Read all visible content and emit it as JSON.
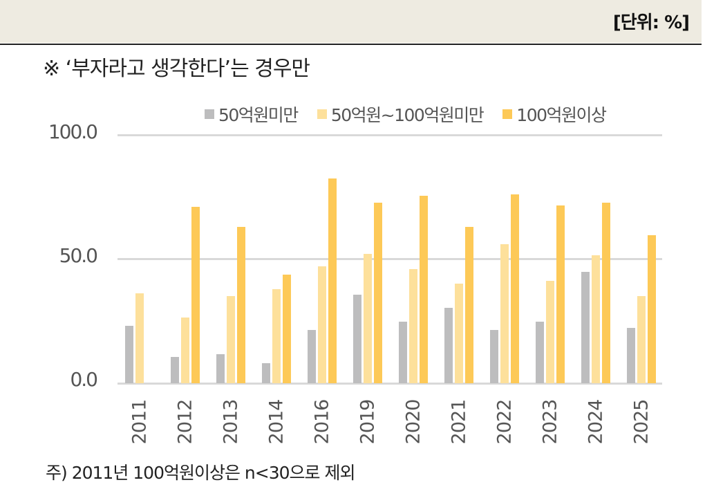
{
  "header": {
    "unit_label": "[단위: %]"
  },
  "subtitle": "※ ‘부자라고 생각한다’는 경우만",
  "footnote": "주) 2011년 100억원이상은 n<30으로 제외",
  "colors": {
    "series0": "#bdbdbe",
    "series1": "#fde09b",
    "series2": "#fdc957",
    "grid": "#d9d9d9",
    "header_bg": "#eeebe1"
  },
  "legend": [
    {
      "label": "50억원미만",
      "color": "#bdbdbe"
    },
    {
      "label": "50억원~100억원미만",
      "color": "#fde09b"
    },
    {
      "label": "100억원이상",
      "color": "#fdc957"
    }
  ],
  "yaxis": {
    "ticks": [
      "100.0",
      "50.0",
      "0.0"
    ]
  },
  "chart_data": {
    "type": "bar",
    "title": "※ ‘부자라고 생각한다’는 경우만",
    "xlabel": "",
    "ylabel": "",
    "unit": "%",
    "ylim": [
      0,
      100
    ],
    "yticks": [
      0,
      50,
      100
    ],
    "grid": true,
    "legend_position": "top-right",
    "categories": [
      "2011",
      "2012",
      "2013",
      "2014",
      "2016",
      "2019",
      "2020",
      "2021",
      "2022",
      "2023",
      "2024",
      "2025"
    ],
    "series": [
      {
        "name": "50억원미만",
        "values": [
          23.2,
          10.7,
          11.8,
          8.1,
          21.5,
          35.7,
          24.8,
          30.3,
          21.5,
          24.8,
          44.9,
          22.2
        ]
      },
      {
        "name": "50억원~100억원미만",
        "values": [
          36.2,
          26.5,
          35.2,
          37.8,
          47.1,
          52.0,
          46.1,
          40.1,
          55.9,
          41.2,
          51.5,
          35.2
        ]
      },
      {
        "name": "100억원이상",
        "values": [
          null,
          71.1,
          63.0,
          43.8,
          82.5,
          72.6,
          75.4,
          63.0,
          76.0,
          71.7,
          72.6,
          59.6
        ]
      }
    ],
    "annotations": [
      "주) 2011년 100억원이상은 n<30으로 제외"
    ]
  }
}
